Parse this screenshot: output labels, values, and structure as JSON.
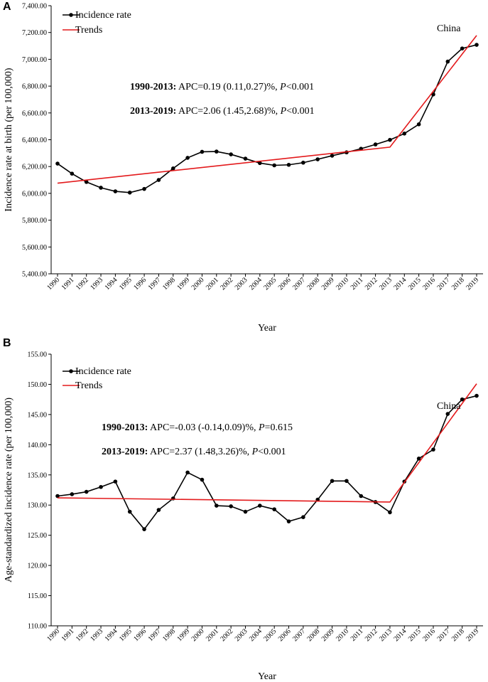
{
  "chart_data": [
    {
      "type": "line",
      "panel_label": "A",
      "region_label": "China",
      "xlabel": "Year",
      "ylabel": "Incidence rate at birth (per 100,000)",
      "ylim": [
        5400,
        7400
      ],
      "y_ticks": [
        5400,
        5600,
        5800,
        6000,
        6200,
        6400,
        6600,
        6800,
        7000,
        7200,
        7400
      ],
      "y_tick_labels": [
        "5,400.00",
        "5,600.00",
        "5,800.00",
        "6,000.00",
        "6,200.00",
        "6,400.00",
        "6,600.00",
        "6,800.00",
        "7,000.00",
        "7,200.00",
        "7,400.00"
      ],
      "x": [
        "1990",
        "1991",
        "1992",
        "1993",
        "1994",
        "1995",
        "1996",
        "1997",
        "1998",
        "1999",
        "2000",
        "2001",
        "2002",
        "2003",
        "2004",
        "2005",
        "2006",
        "2007",
        "2008",
        "2009",
        "2010",
        "2011",
        "2012",
        "2013",
        "2014",
        "2015",
        "2016",
        "2017",
        "2018",
        "2019"
      ],
      "series": [
        {
          "name": "Incidence rate",
          "color": "#000000",
          "marker": "circle",
          "values": [
            6222,
            6147,
            6085,
            6042,
            6015,
            6006,
            6033,
            6100,
            6186,
            6265,
            6310,
            6312,
            6291,
            6259,
            6226,
            6209,
            6213,
            6229,
            6254,
            6281,
            6306,
            6333,
            6365,
            6399,
            6446,
            6515,
            6738,
            6983,
            7081,
            7108
          ]
        },
        {
          "name": "Trends",
          "color": "#e31a1c",
          "marker": "none",
          "points": [
            [
              "1990",
              6076
            ],
            [
              "2013",
              6345
            ],
            [
              "2019",
              7178
            ]
          ]
        }
      ],
      "legend": {
        "position": "top-left",
        "entries": [
          "Incidence rate",
          "Trends"
        ]
      },
      "annotations": [
        {
          "bold": "1990-2013:",
          "text": " APC=0.19 (0.11,0.27)%, ",
          "p_label": "P",
          "p_text": "<0.001"
        },
        {
          "bold": "2013-2019:",
          "text": " APC=2.06 (1.45,2.68)%, ",
          "p_label": "P",
          "p_text": "<0.001"
        }
      ]
    },
    {
      "type": "line",
      "panel_label": "B",
      "region_label": "China",
      "xlabel": "Year",
      "ylabel": "Age-standardized incidence rate (per 100,000)",
      "ylim": [
        110,
        155
      ],
      "y_ticks": [
        110,
        115,
        120,
        125,
        130,
        135,
        140,
        145,
        150,
        155
      ],
      "y_tick_labels": [
        "110.00",
        "115.00",
        "120.00",
        "125.00",
        "130.00",
        "135.00",
        "140.00",
        "145.00",
        "150.00",
        "155.00"
      ],
      "x": [
        "1990",
        "1991",
        "1992",
        "1993",
        "1994",
        "1995",
        "1996",
        "1997",
        "1998",
        "1999",
        "2000",
        "2001",
        "2002",
        "2003",
        "2004",
        "2005",
        "2006",
        "2007",
        "2008",
        "2009",
        "2010",
        "2011",
        "2012",
        "2013",
        "2014",
        "2015",
        "2016",
        "2017",
        "2018",
        "2019"
      ],
      "series": [
        {
          "name": "Incidence rate",
          "color": "#000000",
          "marker": "circle",
          "values": [
            131.5,
            131.8,
            132.2,
            133.0,
            133.9,
            128.9,
            126.0,
            129.2,
            131.1,
            135.4,
            134.2,
            129.9,
            129.8,
            128.9,
            129.9,
            129.3,
            127.3,
            128.0,
            130.9,
            134.0,
            134.0,
            131.5,
            130.5,
            128.8,
            133.9,
            137.7,
            139.2,
            145.1,
            147.5,
            148.1
          ]
        },
        {
          "name": "Trends",
          "color": "#e31a1c",
          "marker": "none",
          "points": [
            [
              "1990",
              131.2
            ],
            [
              "2013",
              130.5
            ],
            [
              "2019",
              150.1
            ]
          ]
        }
      ],
      "legend": {
        "position": "top-left",
        "entries": [
          "Incidence rate",
          "Trends"
        ]
      },
      "annotations": [
        {
          "bold": "1990-2013:",
          "text": " APC=-0.03 (-0.14,0.09)%, ",
          "p_label": "P",
          "p_text": "=0.615"
        },
        {
          "bold": "2013-2019:",
          "text": " APC=2.37 (1.48,3.26)%, ",
          "p_label": "P",
          "p_text": "<0.001"
        }
      ]
    }
  ]
}
